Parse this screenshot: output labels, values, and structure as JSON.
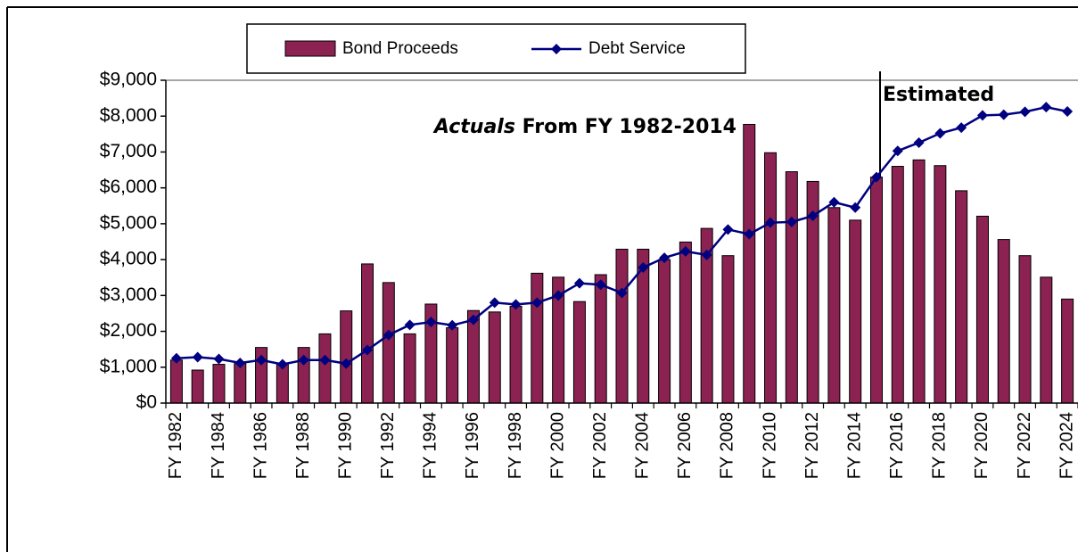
{
  "chart_data": {
    "type": "bar-line",
    "annotations": [
      "Actuals",
      " From FY 1982-2014",
      "Estimated"
    ],
    "categories": [
      "FY 1982",
      null,
      "FY 1984",
      null,
      "FY 1986",
      null,
      "FY 1988",
      null,
      "FY 1990",
      null,
      "FY 1992",
      null,
      "FY 1994",
      null,
      "FY 1996",
      null,
      "FY 1998",
      null,
      "FY 2000",
      null,
      "FY 2002",
      null,
      "FY 2004",
      null,
      "FY 2006",
      null,
      "FY 2008",
      null,
      "FY 2010",
      null,
      "FY 2012",
      null,
      "FY 2014",
      null,
      "FY 2016",
      null,
      "FY 2018",
      null,
      "FY 2020",
      null,
      "FY 2022",
      null,
      "FY 2024"
    ],
    "series": [
      {
        "name": "Bond Proceeds",
        "type": "bar",
        "color": "#8b2252",
        "values": [
          1200,
          920,
          1080,
          1100,
          1550,
          1100,
          1550,
          1930,
          2570,
          3880,
          3360,
          1930,
          2760,
          2100,
          2580,
          2540,
          2700,
          3620,
          3510,
          2830,
          3580,
          4290,
          4290,
          4000,
          4490,
          4870,
          4110,
          7770,
          6980,
          6450,
          6180,
          5450,
          5100,
          6300,
          6600,
          6780,
          6620,
          5920,
          5210,
          4560,
          4110,
          3510,
          2900
        ]
      },
      {
        "name": "Debt Service",
        "type": "line",
        "color": "#000080",
        "values": [
          1250,
          1280,
          1230,
          1120,
          1200,
          1080,
          1200,
          1200,
          1100,
          1480,
          1900,
          2180,
          2260,
          2170,
          2320,
          2800,
          2750,
          2800,
          3000,
          3340,
          3300,
          3070,
          3780,
          4050,
          4230,
          4130,
          4840,
          4710,
          5030,
          5050,
          5220,
          5600,
          5450,
          6300,
          7030,
          7260,
          7520,
          7680,
          8020,
          8040,
          8120,
          8250,
          8130
        ]
      }
    ],
    "ylim": [
      0,
      9000
    ],
    "yticks": [
      {
        "value": 0,
        "label": "$0"
      },
      {
        "value": 1000,
        "label": "$1,000"
      },
      {
        "value": 2000,
        "label": "$2,000"
      },
      {
        "value": 3000,
        "label": "$3,000"
      },
      {
        "value": 4000,
        "label": "$4,000"
      },
      {
        "value": 5000,
        "label": "$5,000"
      },
      {
        "value": 6000,
        "label": "$6,000"
      },
      {
        "value": 7000,
        "label": "$7,000"
      },
      {
        "value": 8000,
        "label": "$8,000"
      },
      {
        "value": 9000,
        "label": "$9,000"
      }
    ],
    "grid": false
  }
}
